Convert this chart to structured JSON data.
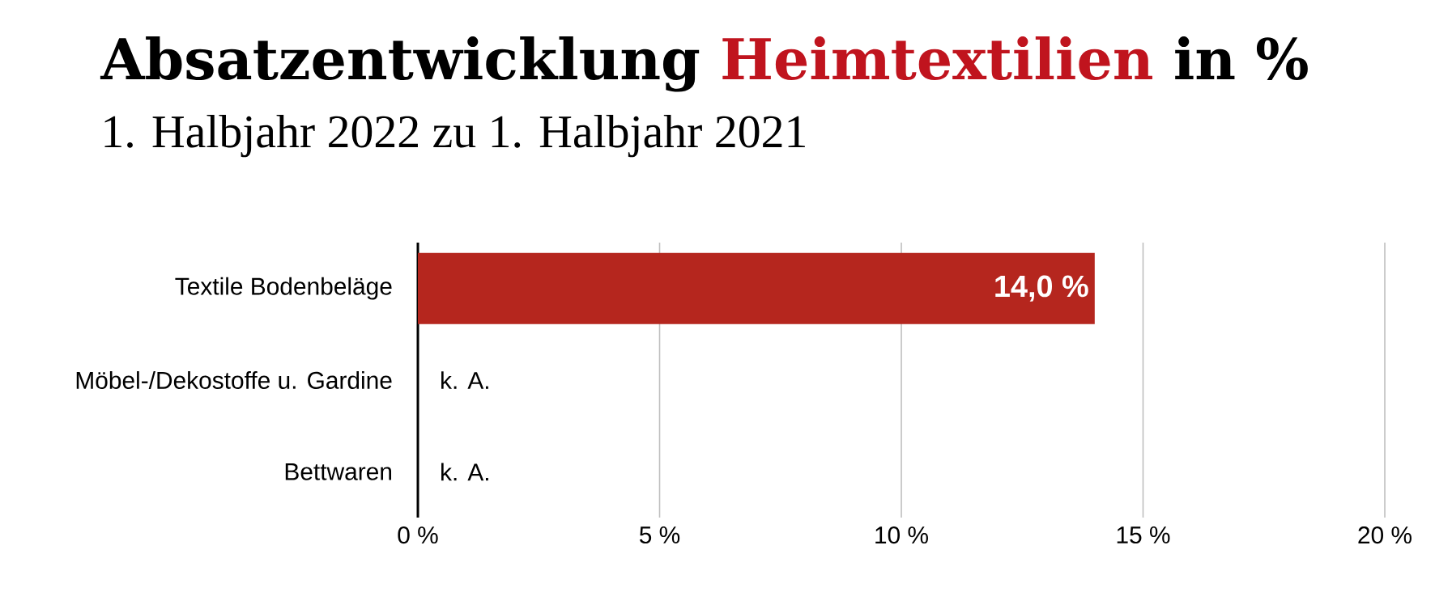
{
  "chart_data": {
    "type": "bar",
    "orientation": "horizontal",
    "title": "Absatzentwicklung **Heimtextilien** in %",
    "subtitle": "1. Halbjahr 2022 zu 1. Halbjahr 2021",
    "categories": [
      "Textile Bodenbeläge",
      "Möbel-/Dekostoffe u. Gardine",
      "Bettwaren"
    ],
    "values": [
      14.0,
      null,
      null
    ],
    "color": "#b5261e",
    "value_labels": [
      "14,0 %",
      "k. A.",
      "k. A."
    ],
    "xlim": [
      0,
      20
    ],
    "xticks": [
      {
        "value": 0,
        "label": "0 %"
      },
      {
        "value": 5,
        "label": "5 %"
      },
      {
        "value": 10,
        "label": "10 %"
      },
      {
        "value": 15,
        "label": "15 %"
      },
      {
        "value": 20,
        "label": "20 %"
      }
    ],
    "grid": "x"
  }
}
